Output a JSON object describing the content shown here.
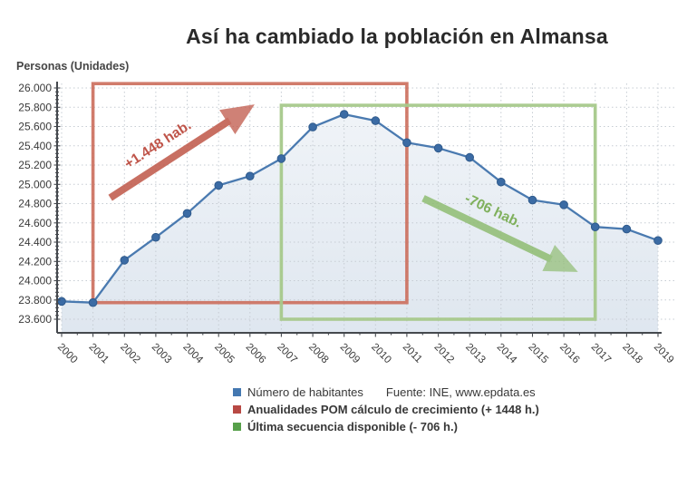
{
  "legend": {
    "items": [
      {
        "label": "Número de habitantes",
        "color": "#4478b1",
        "bold": false
      },
      {
        "label": "Anualidades POM cálculo de crecimiento (+ 1448 h.)",
        "color": "#b84944",
        "bold": true
      },
      {
        "label": "Última secuencia disponible (- 706 h.)",
        "color": "#57a04a",
        "bold": true
      }
    ],
    "source": "Fuente: INE, www.epdata.es"
  },
  "chart_data": {
    "type": "line",
    "title": "Así ha cambiado la población en Almansa",
    "xlabel": "",
    "ylabel": "Personas (Unidades)",
    "x": [
      2000,
      2001,
      2002,
      2003,
      2004,
      2005,
      2006,
      2007,
      2008,
      2009,
      2010,
      2011,
      2012,
      2013,
      2014,
      2015,
      2016,
      2017,
      2018,
      2019
    ],
    "series": [
      {
        "name": "Número de habitantes",
        "values": [
          23785,
          23772,
          24213,
          24450,
          24698,
          24989,
          25085,
          25267,
          25594,
          25727,
          25660,
          25432,
          25376,
          25279,
          25024,
          24837,
          24788,
          24558,
          24536,
          24417
        ],
        "color": "#4a7ab0",
        "marker_color": "#3b6ba4",
        "marker_edge_color": "#2f5a8c"
      }
    ],
    "ylim": [
      23600,
      26000
    ],
    "ytick_step": 200,
    "ytick_labels": [
      "23.600",
      "23.800",
      "24.000",
      "24.200",
      "24.400",
      "24.600",
      "24.800",
      "25.000",
      "25.200",
      "25.400",
      "25.600",
      "25.800",
      "26.000"
    ],
    "grid": true,
    "grid_color": "#c6ccd3",
    "axis_color": "#45494e",
    "tick_text_color": "#3a3a3a",
    "legend_position": "bottom",
    "annotations": [
      {
        "kind": "box",
        "name": "pom-annotation-box",
        "x_from": 2001,
        "x_to": 2011,
        "y_from": 23772,
        "y_to": 26045,
        "color": "#cb6a58",
        "opacity": 0.88
      },
      {
        "kind": "box",
        "name": "last-sequence-annotation-box",
        "x_from": 2007,
        "x_to": 2017,
        "y_from": 23600,
        "y_to": 25820,
        "color": "#a6c98b",
        "opacity": 0.95
      },
      {
        "kind": "arrow",
        "name": "growth-arrow",
        "label": "+1.448 hab.",
        "x_from": 2001.55,
        "y_from": 24860,
        "x_to": 2006.15,
        "y_to": 25830,
        "color": "#c05a4b",
        "label_color": "#bf5449",
        "opacity": 0.87
      },
      {
        "kind": "arrow",
        "name": "decline-arrow",
        "label": "-706 hab.",
        "x_from": 2011.52,
        "y_from": 24855,
        "x_to": 2016.45,
        "y_to": 24090,
        "color": "#8cbb6d",
        "label_color": "#7fb05c",
        "opacity": 0.82
      }
    ]
  }
}
